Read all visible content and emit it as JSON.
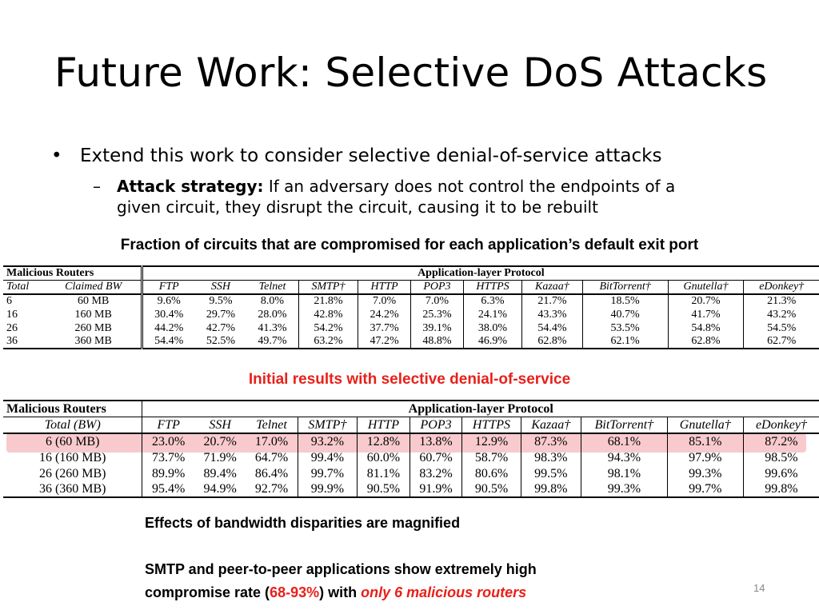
{
  "slide": {
    "title": "Future Work: Selective DoS Attacks",
    "bullet": "Extend this work to consider selective denial-of-service attacks",
    "sub_label": "Attack strategy:",
    "sub_text_1": " If an adversary does not control the endpoints of a",
    "sub_text_2": "given circuit, they disrupt the circuit, causing it to be rebuilt",
    "caption1": "Fraction of circuits that are compromised for each application’s default exit port",
    "caption2": "Initial results with selective denial-of-service",
    "note1": "Effects of bandwidth disparities are magnified",
    "note2_pre": "SMTP and peer-to-peer applications show extremely high",
    "note2_line2_pre": "compromise rate (",
    "note2_red": "68-93%",
    "note2_mid": ") with ",
    "note2_redi": "only 6 malicious routers",
    "page_number": "14"
  },
  "table1": {
    "group_left": "Malicious Routers",
    "group_right": "Application-layer Protocol",
    "headers": [
      "Total",
      "Claimed BW",
      "FTP",
      "SSH",
      "Telnet",
      "SMTP†",
      "HTTP",
      "POP3",
      "HTTPS",
      "Kazaa†",
      "BitTorrent†",
      "Gnutella†",
      "eDonkey†"
    ],
    "rows": [
      [
        "6",
        "60 MB",
        "9.6%",
        "9.5%",
        "8.0%",
        "21.8%",
        "7.0%",
        "7.0%",
        "6.3%",
        "21.7%",
        "18.5%",
        "20.7%",
        "21.3%"
      ],
      [
        "16",
        "160 MB",
        "30.4%",
        "29.7%",
        "28.0%",
        "42.8%",
        "24.2%",
        "25.3%",
        "24.1%",
        "43.3%",
        "40.7%",
        "41.7%",
        "43.2%"
      ],
      [
        "26",
        "260 MB",
        "44.2%",
        "42.7%",
        "41.3%",
        "54.2%",
        "37.7%",
        "39.1%",
        "38.0%",
        "54.4%",
        "53.5%",
        "54.8%",
        "54.5%"
      ],
      [
        "36",
        "360 MB",
        "54.4%",
        "52.5%",
        "49.7%",
        "63.2%",
        "47.2%",
        "48.8%",
        "46.9%",
        "62.8%",
        "62.1%",
        "62.8%",
        "62.7%"
      ]
    ]
  },
  "table2": {
    "group_left": "Malicious Routers",
    "group_right": "Application-layer Protocol",
    "headers": [
      "Total (BW)",
      "FTP",
      "SSH",
      "Telnet",
      "SMTP†",
      "HTTP",
      "POP3",
      "HTTPS",
      "Kazaa†",
      "BitTorrent†",
      "Gnutella†",
      "eDonkey†"
    ],
    "rows": [
      [
        "6 (60 MB)",
        "23.0%",
        "20.7%",
        "17.0%",
        "93.2%",
        "12.8%",
        "13.8%",
        "12.9%",
        "87.3%",
        "68.1%",
        "85.1%",
        "87.2%"
      ],
      [
        "16 (160 MB)",
        "73.7%",
        "71.9%",
        "64.7%",
        "99.4%",
        "60.0%",
        "60.7%",
        "58.7%",
        "98.3%",
        "94.3%",
        "97.9%",
        "98.5%"
      ],
      [
        "26 (260 MB)",
        "89.9%",
        "89.4%",
        "86.4%",
        "99.7%",
        "81.1%",
        "83.2%",
        "80.6%",
        "99.5%",
        "98.1%",
        "99.3%",
        "99.6%"
      ],
      [
        "36 (360 MB)",
        "95.4%",
        "94.9%",
        "92.7%",
        "99.9%",
        "90.5%",
        "91.9%",
        "90.5%",
        "99.8%",
        "99.3%",
        "99.7%",
        "99.8%"
      ]
    ]
  },
  "colors": {
    "accent_red": "#e8201a",
    "highlight": "#e85a64"
  }
}
